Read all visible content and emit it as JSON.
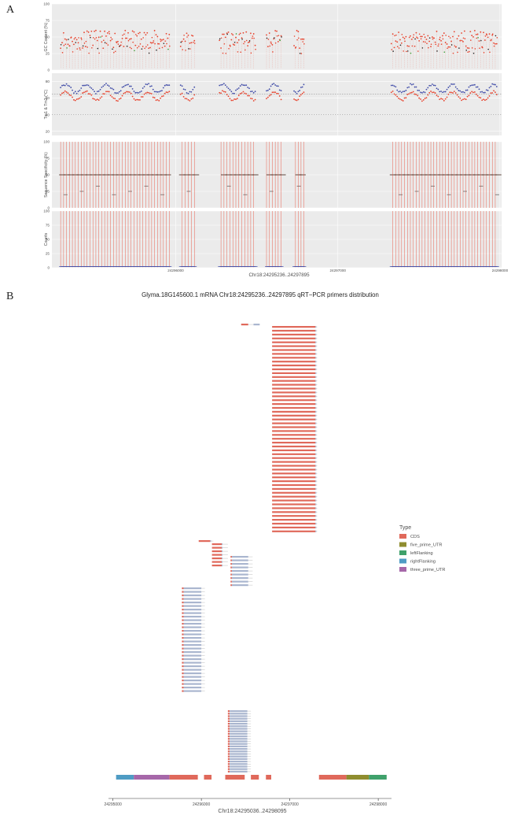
{
  "chart_data": [
    {
      "panel": "A",
      "type": "scatter",
      "facets": [
        {
          "ylabel": "GC Content (%)",
          "yticks": [
            0,
            25,
            50,
            75,
            100
          ],
          "ylim": [
            0,
            100
          ]
        },
        {
          "ylabel": "Tm1 & Tm2 (°C)",
          "yticks": [
            20,
            40,
            60,
            80
          ],
          "ylim": [
            15,
            90
          ],
          "hlines": [
            65,
            40
          ]
        },
        {
          "ylabel": "Sequence Specificity (%)",
          "yticks": [
            0,
            25,
            50,
            75,
            100
          ],
          "ylim": [
            0,
            100
          ]
        },
        {
          "ylabel": "Counts",
          "yticks": [
            0,
            25,
            50,
            75,
            100
          ],
          "ylim": [
            0,
            100
          ]
        }
      ],
      "xlabel": "Chr18:24295236..24297895",
      "xticks": [
        24296000,
        24297000,
        24298000
      ],
      "xlim": [
        24295236,
        24298010
      ],
      "primer_clusters": [
        [
          24295290,
          24295960
        ],
        [
          24296030,
          24296115
        ],
        [
          24296270,
          24296490
        ],
        [
          24296560,
          24296650
        ],
        [
          24296730,
          24296790
        ],
        [
          24297330,
          24297980
        ]
      ],
      "gc_range": [
        25,
        60
      ],
      "tm1_mean": 70,
      "tm2_mean": 64,
      "specificity_levels": [
        50,
        33,
        25,
        20
      ],
      "colors": {
        "panel_bg": "#ebebeb",
        "grid": "#ffffff",
        "red": "#e8412b",
        "blue": "#3f4ba8",
        "green": "#3aa23a",
        "dark": "#3d1f12"
      }
    },
    {
      "panel": "B",
      "type": "bar",
      "title": "Glyma.18G145600.1 mRNA Chr18:24295236..24297895 qRT−PCR primers distribution",
      "xlabel": "Chr18:24295036..24298095",
      "xticks": [
        24295000,
        24296000,
        24297000,
        24298000
      ],
      "xlim": [
        24294950,
        24298150
      ],
      "legend_title": "Type",
      "legend": [
        {
          "name": "CDS",
          "color": "#e0695b"
        },
        {
          "name": "five_prime_UTR",
          "color": "#8f8d2f"
        },
        {
          "name": "leftFlanking",
          "color": "#3fa16b"
        },
        {
          "name": "rightFlanking",
          "color": "#4f9cc4"
        },
        {
          "name": "three_prime_UTR",
          "color": "#a667a9"
        }
      ],
      "features": [
        {
          "type": "rightFlanking",
          "start": 24295036,
          "end": 24295236
        },
        {
          "type": "three_prime_UTR",
          "start": 24295236,
          "end": 24295640
        },
        {
          "type": "CDS",
          "start": 24295640,
          "end": 24295960
        },
        {
          "type": "CDS",
          "start": 24296030,
          "end": 24296115
        },
        {
          "type": "CDS",
          "start": 24296270,
          "end": 24296490
        },
        {
          "type": "CDS",
          "start": 24296560,
          "end": 24296650
        },
        {
          "type": "CDS",
          "start": 24296730,
          "end": 24296790
        },
        {
          "type": "CDS",
          "start": 24297330,
          "end": 24297640
        },
        {
          "type": "five_prime_UTR",
          "start": 24297640,
          "end": 24297895
        },
        {
          "type": "leftFlanking",
          "start": 24297895,
          "end": 24298095
        }
      ],
      "primer_groups": [
        {
          "n": 1,
          "fStart": 24296450,
          "fEnd": 24296530,
          "rStart": 24296590,
          "rEnd": 24296660,
          "tStart": 24296530,
          "tEnd": 24296590
        },
        {
          "n": 54,
          "fStart": 24296800,
          "fEnd": 24297290,
          "rStart": 24297290,
          "rEnd": 24297300,
          "tStart": 24297300,
          "tEnd": 24297310
        },
        {
          "n": 1,
          "fStart": 24295970,
          "fEnd": 24296100,
          "rStart": 24296100,
          "rEnd": 24296110,
          "tStart": 24296110,
          "tEnd": 24296135
        },
        {
          "n": 7,
          "fStart": 24296120,
          "fEnd": 24296230,
          "rStart": 24296230,
          "rEnd": 24296240,
          "tStart": 24296240,
          "tEnd": 24296300
        },
        {
          "n": 9,
          "fStart": 24296330,
          "fEnd": 24296345,
          "rStart": 24296345,
          "rEnd": 24296530,
          "tStart": 24296530,
          "tEnd": 24296580
        },
        {
          "n": 30,
          "fStart": 24295780,
          "fEnd": 24295800,
          "rStart": 24295800,
          "rEnd": 24296000,
          "tStart": 24296000,
          "tEnd": 24296040
        },
        {
          "n": 25,
          "fStart": 24296300,
          "fEnd": 24296320,
          "rStart": 24296320,
          "rEnd": 24296520,
          "tStart": 24296520,
          "tEnd": 24296560
        }
      ]
    }
  ]
}
